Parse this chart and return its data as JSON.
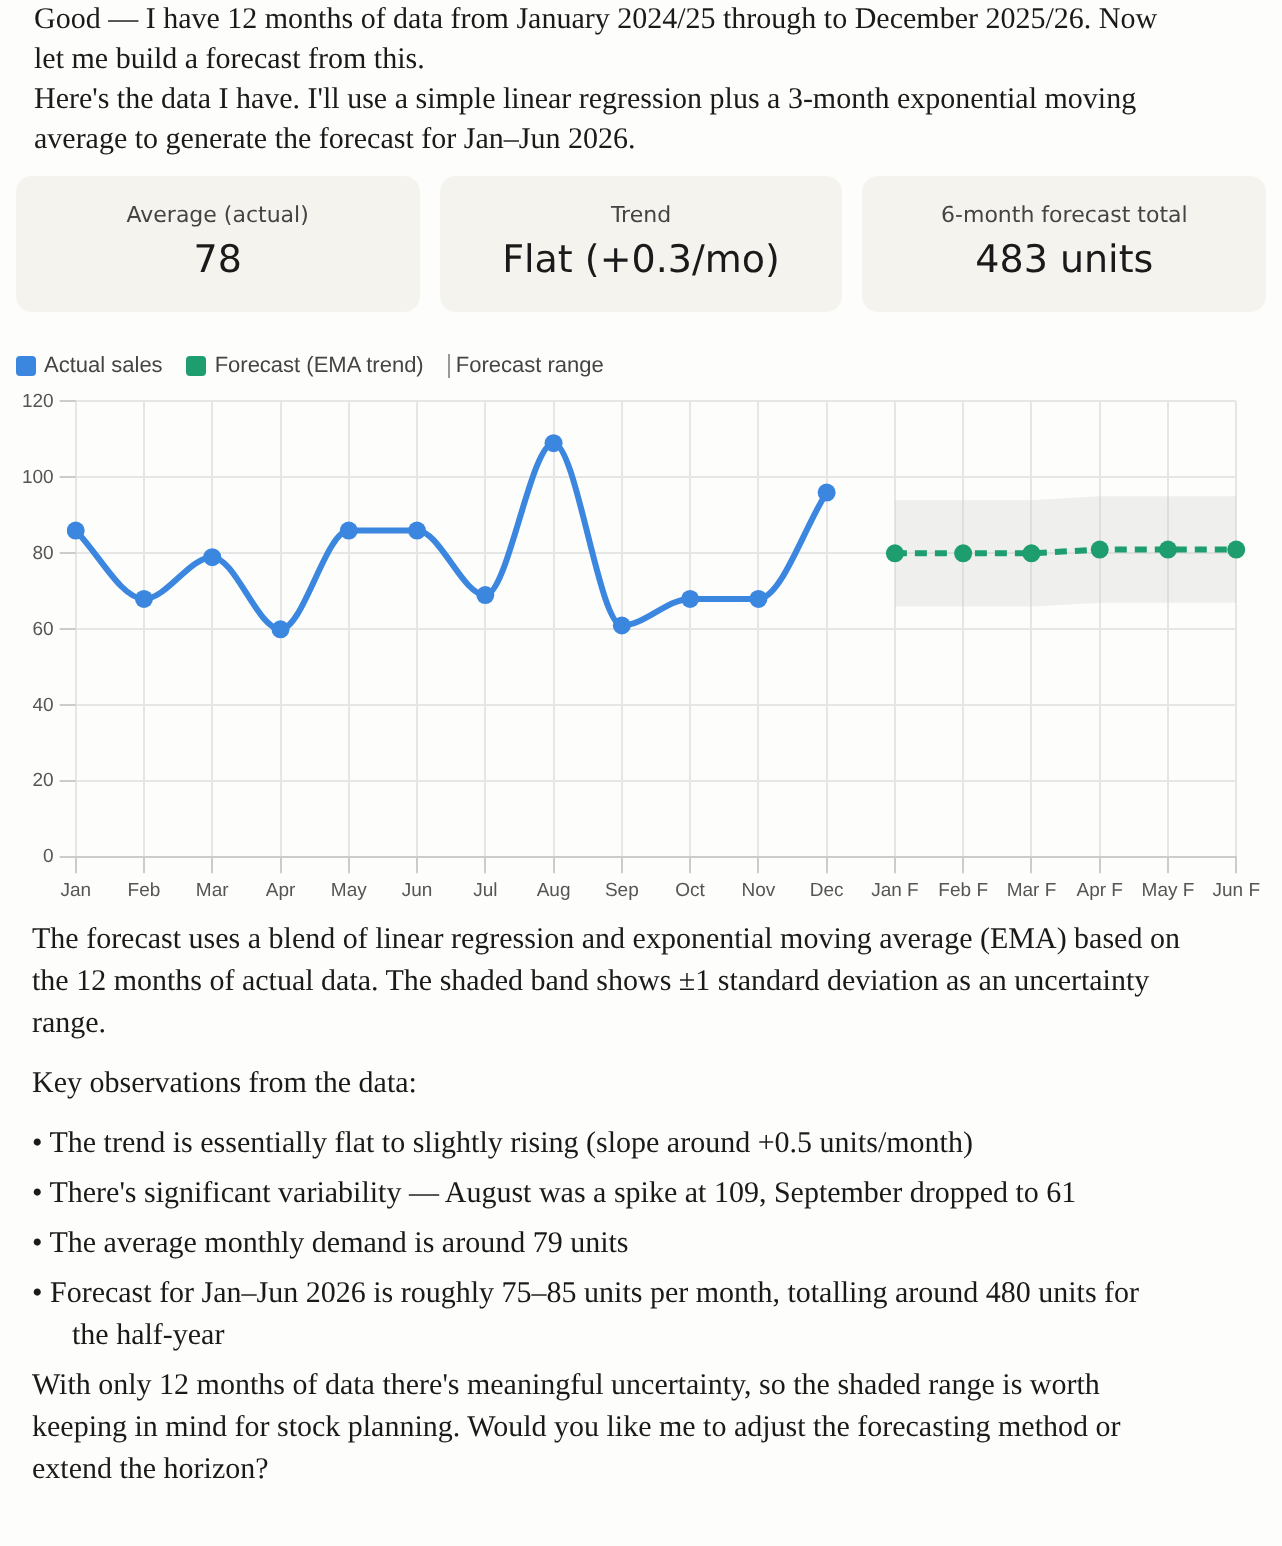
{
  "chart_data": [
    {
      "type": "other",
      "title": "Good — I have 12 months of data from January 2024/25 through to December 2025/26. Now let me build a forecast from this.",
      "subtitle": "Here's the data I have. I'll use a simple linear regression plus a 3-month exponential moving average to generate the forecast for Jan–Jun 2026.",
      "annotations": [
        "Average (actual)",
        "78",
        "Trend",
        "Flat (+0.3/mo)",
        "6-month forecast total",
        "483 units"
      ]
    },
    {
      "type": "line",
      "categories": [
        "Jan",
        "Feb",
        "Mar",
        "Apr",
        "May",
        "Jun",
        "Jul",
        "Aug",
        "Sep",
        "Oct",
        "Nov",
        "Dec",
        "Jan F",
        "Feb F",
        "Mar F",
        "Apr F",
        "May F",
        "Jun F"
      ],
      "series": [
        {
          "name": "Actual sales",
          "color": "#3b87e0",
          "line_style": "solid",
          "values": [
            86,
            68,
            79,
            60,
            86,
            86,
            69,
            109,
            61,
            68,
            68,
            96,
            null,
            null,
            null,
            null,
            null,
            null
          ]
        },
        {
          "name": "Forecast (EMA trend)",
          "color": "#1e9e6e",
          "line_style": "dashed",
          "values": [
            null,
            null,
            null,
            null,
            null,
            null,
            null,
            null,
            null,
            null,
            null,
            null,
            80,
            80,
            80,
            81,
            81,
            81
          ],
          "lower": [
            null,
            null,
            null,
            null,
            null,
            null,
            null,
            null,
            null,
            null,
            null,
            null,
            66,
            66,
            66,
            67,
            67,
            67
          ],
          "upper": [
            null,
            null,
            null,
            null,
            null,
            null,
            null,
            null,
            null,
            null,
            null,
            null,
            94,
            94,
            94,
            95,
            95,
            95
          ]
        }
      ],
      "ylim": [
        0,
        120
      ],
      "yticks": [
        0,
        20,
        40,
        60,
        80,
        100,
        120
      ],
      "grid": true,
      "legend": "top left",
      "marker": "circle",
      "annotations": [
        "Forecast range",
        "The forecast uses a blend of linear regression and exponential moving average (EMA) based on the 12 months of actual data. The shaded band shows ±1 standard deviation as an uncertainty range.",
        "Key observations from the data:",
        "• The trend is essentially flat to slightly rising (slope around +0.5 units/month)",
        "• There's significant variability — August was a spike at 109, September dropped to 61",
        "• The average monthly demand is around 79 units",
        "• Forecast for Jan–Jun 2026 is roughly 75–85 units per month, totalling around 480 units for the half-year",
        "With only 12 months of data there's meaningful uncertainty, so the shaded range is worth keeping in mind for stock planning. Would you like me to adjust the forecasting method or extend the horizon?"
      ]
    }
  ]
}
